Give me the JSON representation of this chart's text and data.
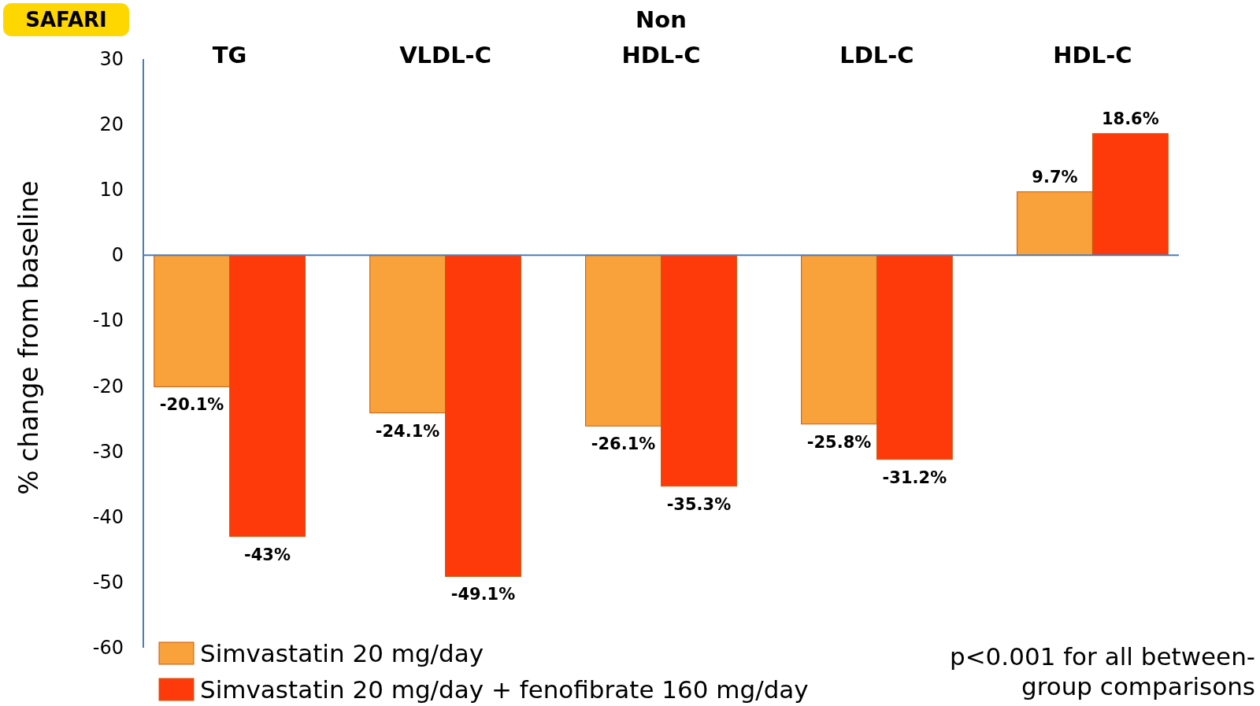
{
  "chart_data": {
    "type": "bar",
    "ylabel": "% change from baseline",
    "categories": [
      "TG",
      "VLDL-C",
      "Non HDL-C",
      "LDL-C",
      "HDL-C"
    ],
    "series": [
      {
        "name": "Simvastatin 20 mg/day",
        "color": "#f9a13a",
        "values": [
          -20.1,
          -24.1,
          -26.1,
          -25.8,
          9.7
        ],
        "value_labels": [
          "-20.1%",
          "-24.1%",
          "-26.1%",
          "-25.8%",
          "9.7%"
        ]
      },
      {
        "name": "Simvastatin 20 mg/day + fenofibrate 160 mg/day",
        "color": "#ff3a0a",
        "values": [
          -43,
          -49.1,
          -35.3,
          -31.2,
          18.6
        ],
        "value_labels": [
          "-43%",
          "-49.1%",
          "-35.3%",
          "-31.2%",
          "18.6%"
        ]
      }
    ],
    "ylim": [
      -60,
      30
    ],
    "yticks": [
      -60,
      -50,
      -40,
      -30,
      -20,
      -10,
      0,
      10,
      20,
      30
    ],
    "grid": false,
    "ref_lines": [
      {
        "axis": "y",
        "value": 0,
        "color": "#4a7ebb"
      }
    ],
    "legend": "bottom left",
    "annotations": [
      "SAFARI",
      "p<0.001 for all between-group comparisons"
    ]
  }
}
